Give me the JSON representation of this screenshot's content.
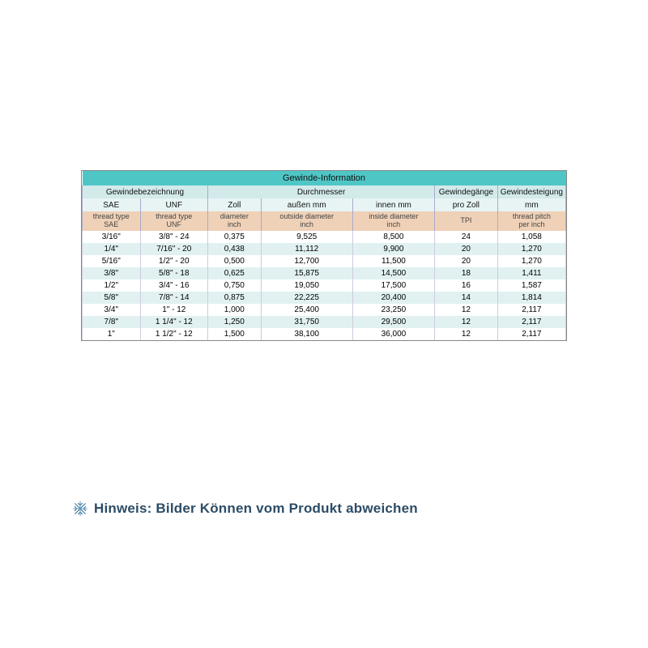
{
  "table": {
    "type": "table",
    "title": "Gewinde-Information",
    "colors": {
      "title_bg": "#4fc6c6",
      "group_bg": "#d3eaea",
      "sub_bg": "#e8f4f4",
      "desc_bg": "#efd1b7",
      "row_even_bg": "#ffffff",
      "row_odd_bg": "#e1f1f1",
      "border": "#888888",
      "cell_border": "#ccccdd"
    },
    "font_size_header": 11,
    "font_size_body": 10,
    "groups": [
      {
        "label": "Gewindebezeichnung",
        "span": 2
      },
      {
        "label": "Durchmesser",
        "span": 3
      },
      {
        "label": "Gewindegänge",
        "span": 1
      },
      {
        "label": "Gewindesteigung",
        "span": 1
      }
    ],
    "sub": [
      "SAE",
      "UNF",
      "Zoll",
      "außen mm",
      "innen mm",
      "pro Zoll",
      "mm"
    ],
    "desc": [
      "thread type SAE",
      "thread type UNF",
      "diameter inch",
      "outside diameter inch",
      "inside diameter inch",
      "TPI",
      "thread pitch per inch"
    ],
    "col_widths_pct": [
      12,
      14,
      11,
      19,
      17,
      13,
      14
    ],
    "rows": [
      [
        "3/16\"",
        "3/8\" - 24",
        "0,375",
        "9,525",
        "8,500",
        "24",
        "1,058"
      ],
      [
        "1/4\"",
        "7/16\" - 20",
        "0,438",
        "11,112",
        "9,900",
        "20",
        "1,270"
      ],
      [
        "5/16\"",
        "1/2\" - 20",
        "0,500",
        "12,700",
        "11,500",
        "20",
        "1,270"
      ],
      [
        "3/8\"",
        "5/8\" - 18",
        "0,625",
        "15,875",
        "14,500",
        "18",
        "1,411"
      ],
      [
        "1/2\"",
        "3/4\" - 16",
        "0,750",
        "19,050",
        "17,500",
        "16",
        "1,587"
      ],
      [
        "5/8\"",
        "7/8\" - 14",
        "0,875",
        "22,225",
        "20,400",
        "14",
        "1,814"
      ],
      [
        "3/4\"",
        "1\" - 12",
        "1,000",
        "25,400",
        "23,250",
        "12",
        "2,117"
      ],
      [
        "7/8\"",
        "1 1/4\" - 12",
        "1,250",
        "31,750",
        "29,500",
        "12",
        "2,117"
      ],
      [
        "1\"",
        "1 1/2\" - 12",
        "1,500",
        "38,100",
        "36,000",
        "12",
        "2,117"
      ]
    ]
  },
  "hint": {
    "text": "Hinweis: Bilder Können vom Produkt abweichen",
    "icon": "snowflake-icon",
    "text_color": "#2c4c66",
    "icon_colors": [
      "#6aa7c9",
      "#3a6e8f"
    ]
  }
}
